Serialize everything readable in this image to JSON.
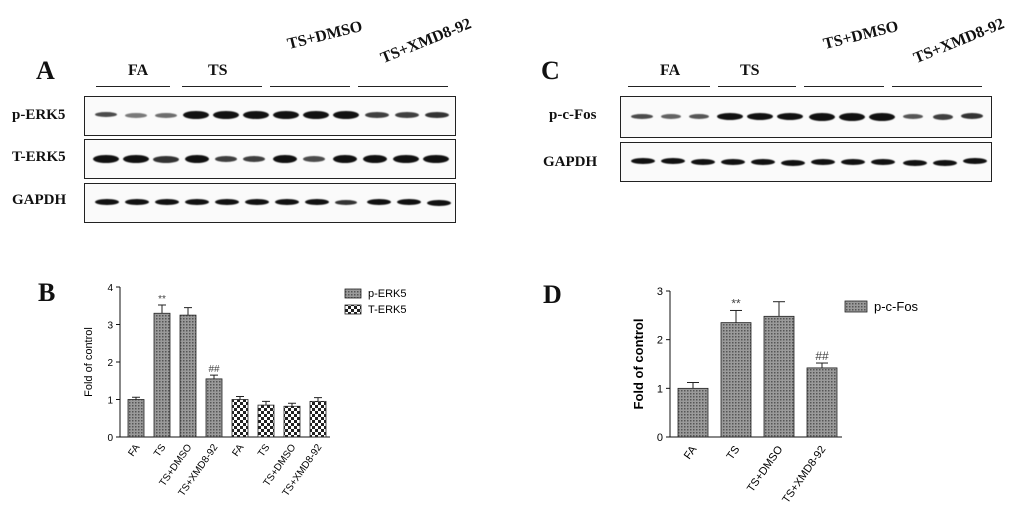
{
  "panels": {
    "A": "A",
    "B": "B",
    "C": "C",
    "D": "D"
  },
  "blot_A": {
    "groups": [
      "FA",
      "TS",
      "TS+DMSO",
      "TS+XMD8-92"
    ],
    "rows": [
      "p-ERK5",
      "T-ERK5",
      "GAPDH"
    ]
  },
  "blot_C": {
    "groups": [
      "FA",
      "TS",
      "TS+DMSO",
      "TS+XMD8-92"
    ],
    "rows": [
      "p-c-Fos",
      "GAPDH"
    ]
  },
  "chart_data": [
    {
      "type": "bar",
      "panel": "B",
      "ylabel": "Fold of control",
      "ylim": [
        0,
        4
      ],
      "yticks": [
        "0",
        "1",
        "2",
        "3",
        "4"
      ],
      "categories": [
        "FA",
        "TS",
        "TS+DMSO",
        "TS+XMD8-92"
      ],
      "series": [
        {
          "name": "p-ERK5",
          "values": [
            1.0,
            3.3,
            3.25,
            1.55
          ],
          "errors": [
            0.06,
            0.22,
            0.2,
            0.1
          ],
          "annotations": [
            "",
            "**",
            "",
            "##"
          ]
        },
        {
          "name": "T-ERK5",
          "values": [
            1.0,
            0.85,
            0.82,
            0.95
          ],
          "errors": [
            0.08,
            0.1,
            0.08,
            0.1
          ],
          "annotations": [
            "",
            "",
            "",
            ""
          ]
        }
      ],
      "legend_position": "top-right",
      "colors": {
        "p-ERK5": "#9a9a9a",
        "T-ERK5": "#cfcfcf"
      }
    },
    {
      "type": "bar",
      "panel": "D",
      "ylabel": "Fold of control",
      "ylim": [
        0,
        3
      ],
      "yticks": [
        "0",
        "1",
        "2",
        "3"
      ],
      "categories": [
        "FA",
        "TS",
        "TS+DMSO",
        "TS+XMD8-92"
      ],
      "series": [
        {
          "name": "p-c-Fos",
          "values": [
            1.0,
            2.35,
            2.48,
            1.42
          ],
          "errors": [
            0.12,
            0.25,
            0.3,
            0.1
          ],
          "annotations": [
            "",
            "**",
            "",
            "##"
          ]
        }
      ],
      "legend_position": "top-right",
      "colors": {
        "p-c-Fos": "#9a9a9a"
      }
    }
  ]
}
